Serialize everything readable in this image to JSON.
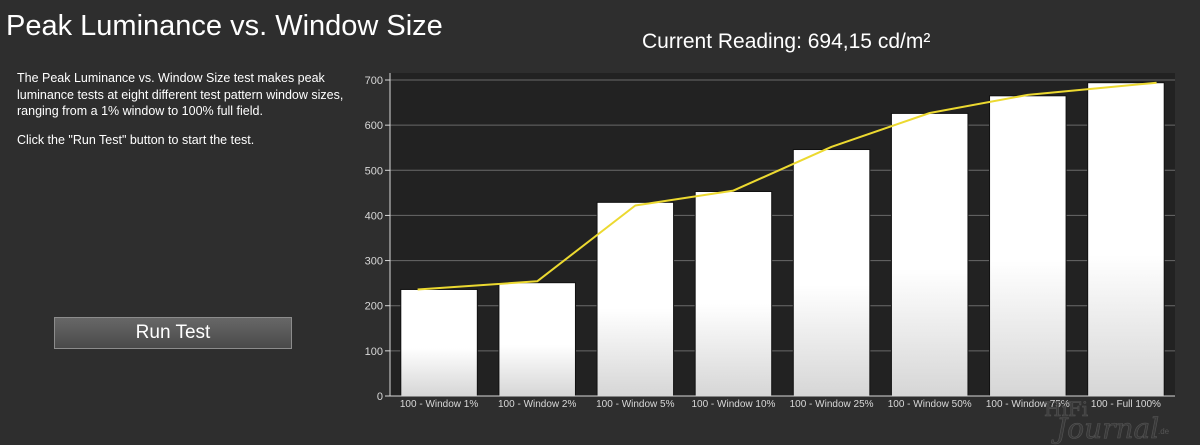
{
  "page": {
    "title": "Peak Luminance vs. Window Size",
    "current_reading": "Current Reading: 694,15 cd/m²",
    "description": [
      "The Peak Luminance vs. Window Size test makes peak luminance tests at eight different test pattern window sizes, ranging from a 1% window to 100% full field.",
      "Click the \"Run Test\" button to start the test."
    ],
    "run_button_label": "Run Test"
  },
  "watermark": {
    "line1": "HiFi",
    "line2": "Journal",
    "suffix": ".de"
  },
  "colors": {
    "background": "#2e2e2e",
    "plot_background": "#222222",
    "bar_fill_top": "#ffffff",
    "bar_fill_bottom": "#d6d6d6",
    "bar_outline": "#111111",
    "line": "#ecd930",
    "grid": "#6a6a6a",
    "text": "#ffffff",
    "axis_text": "#d8d8d8"
  },
  "chart_data": {
    "type": "bar",
    "categories": [
      "100 - Window  1%",
      "100 - Window  2%",
      "100 - Window  5%",
      "100 - Window 10%",
      "100 - Window 25%",
      "100 - Window 50%",
      "100 - Window 75%",
      "100 - Full  100%"
    ],
    "values": [
      236,
      251,
      429,
      453,
      546,
      626,
      665,
      694
    ],
    "line_values": [
      236,
      254,
      422,
      455,
      552,
      627,
      667,
      694
    ],
    "ylim": [
      0,
      700
    ],
    "yticks": [
      0,
      100,
      200,
      300,
      400,
      500,
      600,
      700
    ],
    "grid": true,
    "xlabel": "",
    "ylabel": ""
  }
}
